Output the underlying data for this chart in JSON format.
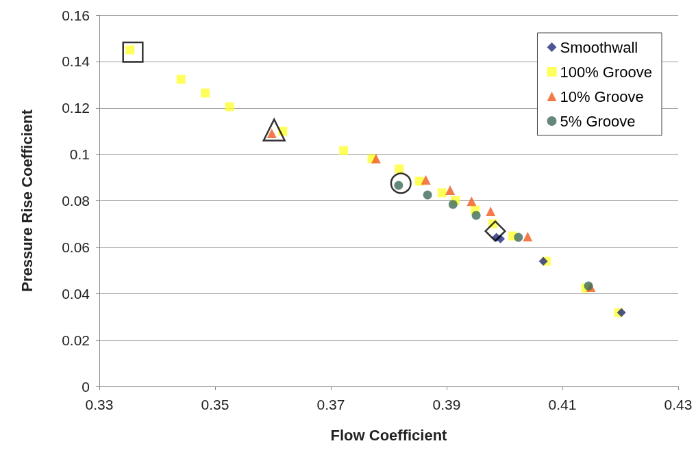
{
  "chart_data": {
    "type": "scatter",
    "xlabel": "Flow Coefficient",
    "ylabel": "Pressure Rise Coefficient",
    "xlim": [
      0.33,
      0.43
    ],
    "xticks": [
      0.33,
      0.35,
      0.37,
      0.39,
      0.41,
      0.43
    ],
    "ylim": [
      0,
      0.16
    ],
    "yticks": [
      0,
      0.02,
      0.04,
      0.06,
      0.08,
      0.1,
      0.12,
      0.14,
      0.16
    ],
    "grid": "y",
    "legend": "top right",
    "series": [
      {
        "name": "Smoothwall",
        "color": "#1f2a7a",
        "marker": "diamond",
        "x": [
          0.3986,
          0.3993,
          0.4067,
          0.4202
        ],
        "values": [
          0.0642,
          0.0636,
          0.0539,
          0.0318
        ]
      },
      {
        "name": "100% Groove",
        "color": "#ffff33",
        "marker": "square",
        "x": [
          0.3353,
          0.3441,
          0.3483,
          0.3525,
          0.3617,
          0.3722,
          0.3771,
          0.3818,
          0.3853,
          0.3892,
          0.3915,
          0.3949,
          0.398,
          0.4014,
          0.4072,
          0.414,
          0.4197
        ],
        "values": [
          0.145,
          0.1323,
          0.1264,
          0.1205,
          0.1099,
          0.1016,
          0.0981,
          0.0937,
          0.0884,
          0.0834,
          0.0801,
          0.076,
          0.0701,
          0.0648,
          0.0539,
          0.0424,
          0.0318
        ]
      },
      {
        "name": "10% Groove",
        "color": "#f05a1e",
        "marker": "triangle",
        "x": [
          0.3598,
          0.3778,
          0.3864,
          0.3906,
          0.3943,
          0.3976,
          0.404,
          0.4149
        ],
        "values": [
          0.109,
          0.0981,
          0.089,
          0.0846,
          0.0798,
          0.0754,
          0.0645,
          0.0427
        ]
      },
      {
        "name": "5% Groove",
        "color": "#3d6b5a",
        "marker": "circle",
        "x": [
          0.3817,
          0.3867,
          0.3911,
          0.3951,
          0.4024,
          0.4145
        ],
        "values": [
          0.0866,
          0.0825,
          0.0784,
          0.0737,
          0.0642,
          0.0433
        ]
      },
      {
        "color": "#000000",
        "marker": "square",
        "x": [
          0.3358
        ],
        "values": [
          0.144
        ]
      },
      {
        "color": "#000000",
        "marker": "triangle",
        "x": [
          0.3602
        ],
        "values": [
          0.1105
        ]
      },
      {
        "color": "#000000",
        "marker": "circle",
        "x": [
          0.3821
        ],
        "values": [
          0.0875
        ]
      },
      {
        "color": "#000000",
        "marker": "diamond",
        "x": [
          0.3984
        ],
        "values": [
          0.0669
        ]
      }
    ]
  }
}
